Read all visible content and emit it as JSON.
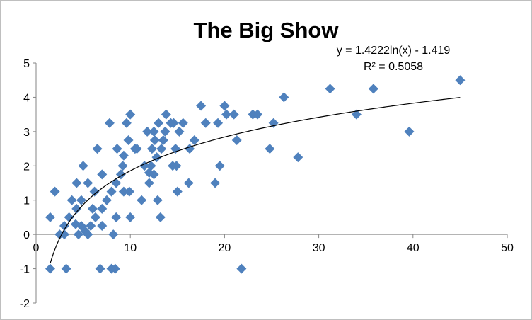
{
  "chart_data": {
    "type": "scatter",
    "title": "The Big Show",
    "xlabel": "",
    "ylabel": "",
    "xlim": [
      0,
      50
    ],
    "ylim": [
      -2,
      5
    ],
    "xticks": [
      "0",
      "10",
      "20",
      "30",
      "40",
      "50"
    ],
    "yticks": [
      "5",
      "4",
      "3",
      "2",
      "1",
      "0",
      "-1",
      "-2"
    ],
    "grid": false,
    "legend": "none",
    "marker_color": "#4F81BD",
    "trendline": {
      "type": "logarithmic",
      "a": 1.4222,
      "b": -1.419,
      "equation": "y = 1.4222ln(x) - 1.419",
      "r_squared": "R² = 0.5058",
      "color": "#000000"
    },
    "points": [
      [
        1.5,
        0.5
      ],
      [
        1.5,
        -1.0
      ],
      [
        2.0,
        1.25
      ],
      [
        2.5,
        0.0
      ],
      [
        3.0,
        0.25
      ],
      [
        3.0,
        0.0
      ],
      [
        3.2,
        -1.0
      ],
      [
        3.5,
        0.5
      ],
      [
        3.8,
        1.0
      ],
      [
        4.2,
        0.3
      ],
      [
        4.3,
        0.75
      ],
      [
        4.3,
        1.5
      ],
      [
        4.5,
        0.0
      ],
      [
        4.8,
        1.0
      ],
      [
        4.8,
        0.25
      ],
      [
        5.0,
        2.0
      ],
      [
        5.2,
        0.1
      ],
      [
        5.5,
        0.0
      ],
      [
        5.5,
        1.5
      ],
      [
        5.8,
        0.25
      ],
      [
        6.0,
        0.75
      ],
      [
        6.2,
        1.25
      ],
      [
        6.3,
        0.5
      ],
      [
        6.5,
        2.5
      ],
      [
        6.8,
        -1.0
      ],
      [
        7.0,
        0.75
      ],
      [
        7.0,
        1.75
      ],
      [
        7.0,
        0.25
      ],
      [
        7.5,
        1.0
      ],
      [
        7.8,
        3.25
      ],
      [
        8.0,
        1.25
      ],
      [
        8.0,
        -1.0
      ],
      [
        8.2,
        0.0
      ],
      [
        8.4,
        -1.0
      ],
      [
        8.5,
        0.5
      ],
      [
        8.5,
        1.5
      ],
      [
        8.6,
        2.5
      ],
      [
        9.0,
        1.75
      ],
      [
        9.2,
        2.0
      ],
      [
        9.3,
        2.3
      ],
      [
        9.3,
        1.25
      ],
      [
        9.6,
        3.25
      ],
      [
        9.8,
        2.75
      ],
      [
        9.9,
        1.25
      ],
      [
        10.0,
        0.5
      ],
      [
        10.0,
        3.5
      ],
      [
        10.5,
        2.5
      ],
      [
        10.7,
        2.5
      ],
      [
        11.2,
        1.0
      ],
      [
        11.5,
        2.0
      ],
      [
        11.8,
        3.0
      ],
      [
        12.0,
        1.5
      ],
      [
        12.0,
        1.8
      ],
      [
        12.2,
        2.0
      ],
      [
        12.3,
        2.5
      ],
      [
        12.5,
        1.75
      ],
      [
        12.5,
        3.0
      ],
      [
        12.6,
        2.75
      ],
      [
        12.8,
        2.25
      ],
      [
        12.9,
        1.0
      ],
      [
        13.0,
        3.25
      ],
      [
        13.2,
        0.5
      ],
      [
        13.3,
        2.5
      ],
      [
        13.5,
        2.75
      ],
      [
        13.7,
        3.0
      ],
      [
        13.8,
        3.5
      ],
      [
        14.3,
        3.25
      ],
      [
        14.5,
        2.0
      ],
      [
        14.6,
        3.25
      ],
      [
        14.8,
        2.5
      ],
      [
        14.9,
        2.0
      ],
      [
        15.0,
        1.25
      ],
      [
        15.2,
        3.0
      ],
      [
        15.6,
        3.25
      ],
      [
        16.2,
        1.5
      ],
      [
        16.3,
        2.5
      ],
      [
        16.8,
        2.75
      ],
      [
        17.5,
        3.75
      ],
      [
        18.0,
        3.25
      ],
      [
        19.0,
        1.5
      ],
      [
        19.3,
        3.25
      ],
      [
        19.5,
        2.0
      ],
      [
        20.0,
        3.75
      ],
      [
        20.2,
        3.5
      ],
      [
        21.0,
        3.5
      ],
      [
        21.3,
        2.75
      ],
      [
        21.8,
        -1.0
      ],
      [
        23.0,
        3.5
      ],
      [
        23.5,
        3.5
      ],
      [
        24.8,
        2.5
      ],
      [
        25.2,
        3.25
      ],
      [
        26.3,
        4.0
      ],
      [
        27.8,
        2.25
      ],
      [
        31.2,
        4.25
      ],
      [
        34.0,
        3.5
      ],
      [
        35.8,
        4.25
      ],
      [
        39.6,
        3.0
      ],
      [
        45.0,
        4.5
      ]
    ]
  }
}
